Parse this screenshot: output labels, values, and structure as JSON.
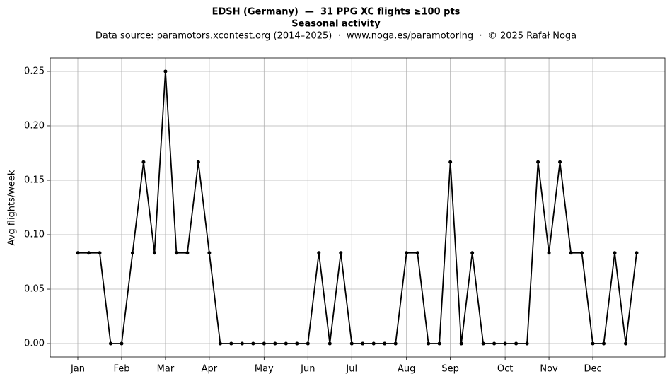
{
  "chart_data": {
    "type": "line",
    "title": "EDSH (Germany)  —  31 PPG XC flights ≥100 pts",
    "subtitle": "Seasonal activity",
    "source": "Data source: paramotors.xcontest.org (2014–2025)  ·  www.noga.es/paramotoring  ·  © 2025 Rafał Noga",
    "y_label": "Avg flights/week",
    "categories": [
      "Jan",
      null,
      null,
      null,
      "Feb",
      null,
      null,
      null,
      "Mar",
      null,
      null,
      null,
      "Apr",
      null,
      null,
      null,
      null,
      "May",
      null,
      null,
      null,
      "Jun",
      null,
      null,
      null,
      "Jul",
      null,
      null,
      null,
      null,
      "Aug",
      null,
      null,
      null,
      "Sep",
      null,
      null,
      null,
      null,
      "Oct",
      null,
      null,
      null,
      "Nov",
      null,
      null,
      null,
      "Dec",
      null,
      null,
      null,
      null
    ],
    "series": [
      {
        "name": "Avg flights/week",
        "color": "#000000",
        "values": [
          0.0833,
          0.0833,
          0.0833,
          0,
          0,
          0.0833,
          0.1667,
          0.0833,
          0.25,
          0.0833,
          0.0833,
          0.1667,
          0.0833,
          0,
          0,
          0,
          0,
          0,
          0,
          0,
          0,
          0,
          0.0833,
          0,
          0.0833,
          0,
          0,
          0,
          0,
          0,
          0.0833,
          0.0833,
          0,
          0,
          0.1667,
          0,
          0.0833,
          0,
          0,
          0,
          0,
          0,
          0.1667,
          0.0833,
          0.1667,
          0.0833,
          0.0833,
          0,
          0,
          0.0833,
          0,
          0.0833
        ]
      }
    ],
    "ylim": [
      -0.0123,
      0.2623
    ],
    "yticks": [
      {
        "value": 0,
        "label": "0.00"
      },
      {
        "value": 0.05,
        "label": "0.05"
      },
      {
        "value": 0.1,
        "label": "0.10"
      },
      {
        "value": 0.15,
        "label": "0.15"
      },
      {
        "value": 0.2,
        "label": "0.20"
      },
      {
        "value": 0.25,
        "label": "0.25"
      }
    ],
    "grid": true
  }
}
